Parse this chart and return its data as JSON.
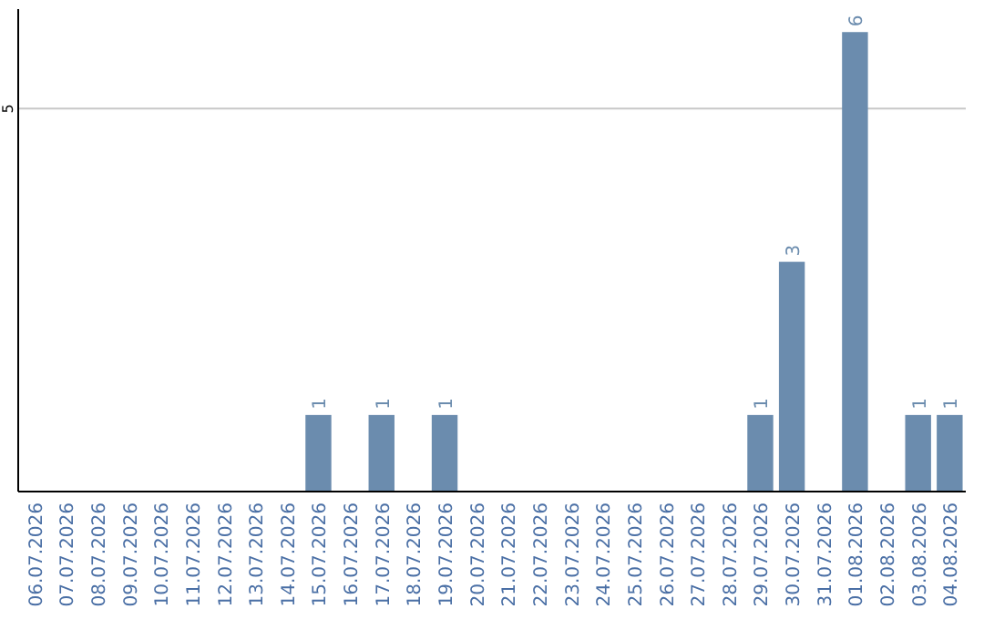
{
  "chart_data": {
    "type": "bar",
    "categories": [
      "06.07.2026",
      "07.07.2026",
      "08.07.2026",
      "09.07.2026",
      "10.07.2026",
      "11.07.2026",
      "12.07.2026",
      "13.07.2026",
      "14.07.2026",
      "15.07.2026",
      "16.07.2026",
      "17.07.2026",
      "18.07.2026",
      "19.07.2026",
      "20.07.2026",
      "21.07.2026",
      "22.07.2026",
      "23.07.2026",
      "24.07.2026",
      "25.07.2026",
      "26.07.2026",
      "27.07.2026",
      "28.07.2026",
      "29.07.2026",
      "30.07.2026",
      "31.07.2026",
      "01.08.2026",
      "02.08.2026",
      "03.08.2026",
      "04.08.2026"
    ],
    "values": [
      0,
      0,
      0,
      0,
      0,
      0,
      0,
      0,
      0,
      1,
      0,
      1,
      0,
      1,
      0,
      0,
      0,
      0,
      0,
      0,
      0,
      0,
      0,
      1,
      3,
      0,
      6,
      0,
      1,
      1
    ],
    "value_labels": [
      null,
      null,
      null,
      null,
      null,
      null,
      null,
      null,
      null,
      "1",
      null,
      "1",
      null,
      "1",
      null,
      null,
      null,
      null,
      null,
      null,
      null,
      null,
      null,
      "1",
      "3",
      null,
      "6",
      null,
      "1",
      "1"
    ],
    "color": "#6b8cae",
    "ylim": [
      0,
      6.3
    ],
    "yticks": [
      5
    ],
    "grid": "y"
  }
}
